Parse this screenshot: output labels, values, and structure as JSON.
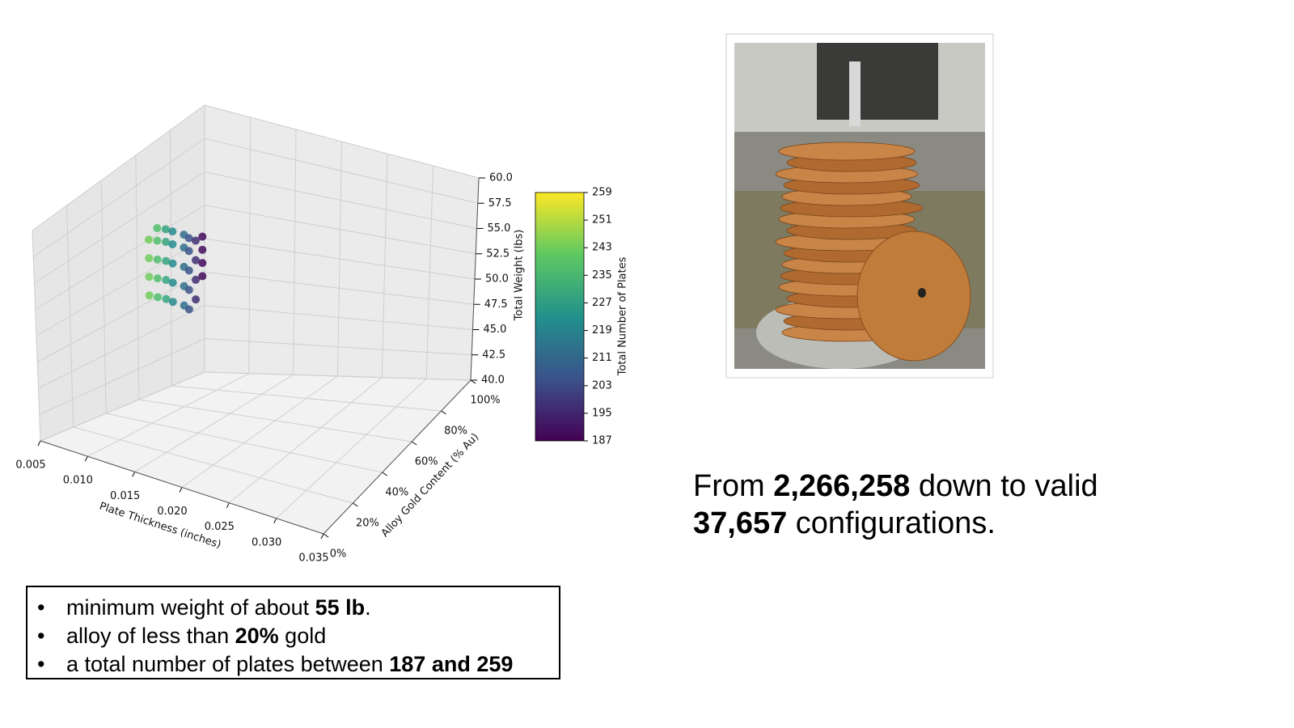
{
  "chart_data": {
    "type": "scatter3d",
    "xlabel": "Plate Thickness (inches)",
    "ylabel": "Alloy Gold Content (% Au)",
    "zlabel": "Total Weight (lbs)",
    "clabel": "Total Number of Plates",
    "colormap": "viridis",
    "xlim": [
      0.005,
      0.035
    ],
    "ylim": [
      0,
      100
    ],
    "zlim": [
      40,
      60
    ],
    "clim": [
      187,
      259
    ],
    "xticks": [
      0.005,
      {
        "value": 0.01,
        "label": "0.010"
      },
      0.015,
      {
        "value": 0.02,
        "label": "0.020"
      },
      0.025,
      {
        "value": 0.03,
        "label": "0.030"
      },
      0.035
    ],
    "yticks": [
      {
        "value": 0,
        "label": "0%"
      },
      {
        "value": 20,
        "label": "20%"
      },
      {
        "value": 40,
        "label": "40%"
      },
      {
        "value": 60,
        "label": "60%"
      },
      {
        "value": 80,
        "label": "80%"
      },
      {
        "value": 100,
        "label": "100%"
      }
    ],
    "zticks": [
      {
        "value": 40,
        "label": "40.0"
      },
      42.5,
      {
        "value": 45,
        "label": "45.0"
      },
      47.5,
      {
        "value": 50,
        "label": "50.0"
      },
      52.5,
      {
        "value": 55,
        "label": "55.0"
      },
      57.5,
      {
        "value": 60,
        "label": "60.0"
      }
    ],
    "cticks": [
      187,
      195,
      203,
      211,
      219,
      227,
      235,
      243,
      251,
      259
    ],
    "x": [
      0.005,
      0.005,
      0.005,
      0.005,
      0.005,
      0.005,
      0.005,
      0.005,
      0.005,
      0.005,
      0.005,
      0.005,
      0.005,
      0.005,
      0.005,
      0.005,
      0.005,
      0.005,
      0.005,
      0.0055,
      0.0055,
      0.0055,
      0.0055,
      0.0055,
      0.0055,
      0.0055,
      0.0055,
      0.0055,
      0.0055,
      0.0055,
      0.0055,
      0.0055,
      0.0055,
      0.0055,
      0.0055,
      0.0055,
      0.0055
    ],
    "y": [
      67,
      67,
      67,
      67,
      72,
      72,
      72,
      72,
      72,
      77,
      77,
      77,
      77,
      77,
      81,
      81,
      81,
      81,
      81,
      85,
      85,
      85,
      85,
      85,
      88,
      88,
      88,
      88,
      88,
      92,
      92,
      92,
      92,
      96,
      96,
      96,
      96
    ],
    "z": [
      48,
      49.5,
      51,
      52.5,
      47.5,
      49,
      50.5,
      52,
      53,
      47,
      48.5,
      50,
      51.5,
      52.5,
      46.5,
      48,
      49.5,
      51,
      52,
      46,
      47.5,
      49,
      50.5,
      51.5,
      45.5,
      47,
      48.5,
      50,
      51,
      46,
      47.5,
      49,
      50.5,
      47.5,
      48.5,
      49.5,
      50.5
    ],
    "c": [
      243,
      243,
      243,
      243,
      237,
      237,
      237,
      237,
      237,
      229,
      229,
      229,
      229,
      229,
      221,
      221,
      221,
      221,
      221,
      213,
      213,
      213,
      213,
      213,
      205,
      205,
      205,
      205,
      205,
      197,
      197,
      197,
      197,
      189,
      189,
      189,
      189
    ]
  },
  "bullets": [
    [
      {
        "text": "minimum weight of about ",
        "bold": false
      },
      {
        "text": "55 lb",
        "bold": true
      },
      {
        "text": ".",
        "bold": false
      }
    ],
    [
      {
        "text": "alloy of less than ",
        "bold": false
      },
      {
        "text": "20%",
        "bold": true
      },
      {
        "text": " gold",
        "bold": false
      }
    ],
    [
      {
        "text": "a total number of plates between ",
        "bold": false
      },
      {
        "text": "187 and 259",
        "bold": true
      }
    ]
  ],
  "summary": [
    [
      {
        "text": "From ",
        "bold": false
      },
      {
        "text": "2,266,258",
        "bold": true
      },
      {
        "text": " down to valid",
        "bold": false
      }
    ],
    [
      {
        "text": "37,657",
        "bold": true
      },
      {
        "text": " configurations.",
        "bold": false
      }
    ]
  ]
}
